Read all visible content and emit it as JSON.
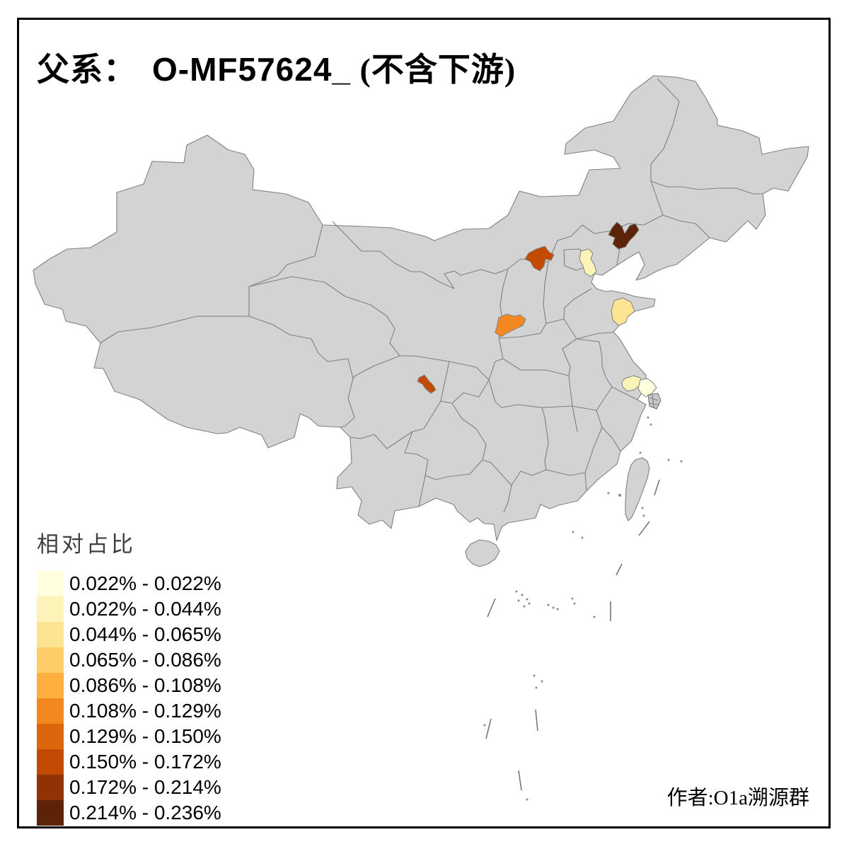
{
  "title": {
    "prefix": "父系：",
    "code": "O-MF57624_",
    "suffix": " (不含下游)"
  },
  "legend": {
    "title": "相对占比",
    "items": [
      {
        "label": "0.022% - 0.022%",
        "color": "#FFFFE0"
      },
      {
        "label": "0.022% - 0.044%",
        "color": "#FBF3B7"
      },
      {
        "label": "0.044% - 0.065%",
        "color": "#FDE492"
      },
      {
        "label": "0.065% - 0.086%",
        "color": "#FDCE68"
      },
      {
        "label": "0.086% - 0.108%",
        "color": "#FDAF3F"
      },
      {
        "label": "0.108% - 0.129%",
        "color": "#F2881F"
      },
      {
        "label": "0.129% - 0.150%",
        "color": "#DC660E"
      },
      {
        "label": "0.150% - 0.172%",
        "color": "#C24A03"
      },
      {
        "label": "0.172% - 0.214%",
        "color": "#913106"
      },
      {
        "label": "0.214% - 0.236%",
        "color": "#5C2308"
      }
    ]
  },
  "attribution": "作者:O1a溯源群",
  "map": {
    "base_fill": "#D3D3D3",
    "border_color": "#808080",
    "sea_color": "#FFFFFF",
    "frame_color": "#000000",
    "regions": [
      {
        "id": "liaoning-west",
        "class_index": 9
      },
      {
        "id": "hebei-northwest",
        "class_index": 7
      },
      {
        "id": "tianjin-area",
        "class_index": 1
      },
      {
        "id": "shandong-east",
        "class_index": 2
      },
      {
        "id": "shanxi-southwest",
        "class_index": 5
      },
      {
        "id": "sichuan-central",
        "class_index": 7
      },
      {
        "id": "jiangsu-south-west",
        "class_index": 1
      },
      {
        "id": "jiangsu-south-east",
        "class_index": 0
      }
    ]
  },
  "chart_data": {
    "type": "heatmap",
    "subtype": "choropleth-map-of-china",
    "title": "父系： O-MF57624_ (不含下游)",
    "legend_title": "相对占比",
    "classes": [
      "0.022% - 0.022%",
      "0.022% - 0.044%",
      "0.044% - 0.065%",
      "0.065% - 0.086%",
      "0.086% - 0.108%",
      "0.108% - 0.129%",
      "0.129% - 0.150%",
      "0.150% - 0.172%",
      "0.172% - 0.214%",
      "0.214% - 0.236%"
    ],
    "palette": [
      "#FFFFE0",
      "#FBF3B7",
      "#FDE492",
      "#FDCE68",
      "#FDAF3F",
      "#F2881F",
      "#DC660E",
      "#C24A03",
      "#913106",
      "#5C2308"
    ],
    "unhighlighted_fill": "#D3D3D3",
    "highlighted_regions": [
      {
        "location": "western Liaoning (northeast China)",
        "value_range": "0.214% - 0.236%"
      },
      {
        "location": "northwest Hebei",
        "value_range": "0.150% - 0.172%"
      },
      {
        "location": "Tianjin area",
        "value_range": "0.022% - 0.044%"
      },
      {
        "location": "eastern Shandong peninsula",
        "value_range": "0.044% - 0.065%"
      },
      {
        "location": "southwest Shanxi",
        "value_range": "0.108% - 0.129%"
      },
      {
        "location": "central Sichuan basin",
        "value_range": "0.150% - 0.172%"
      },
      {
        "location": "southern Jiangsu (west patch)",
        "value_range": "0.022% - 0.044%"
      },
      {
        "location": "southern Jiangsu (east patch)",
        "value_range": "0.022% - 0.022%"
      }
    ],
    "legend_position": "bottom-left",
    "annotation": "作者:O1a溯源群"
  }
}
